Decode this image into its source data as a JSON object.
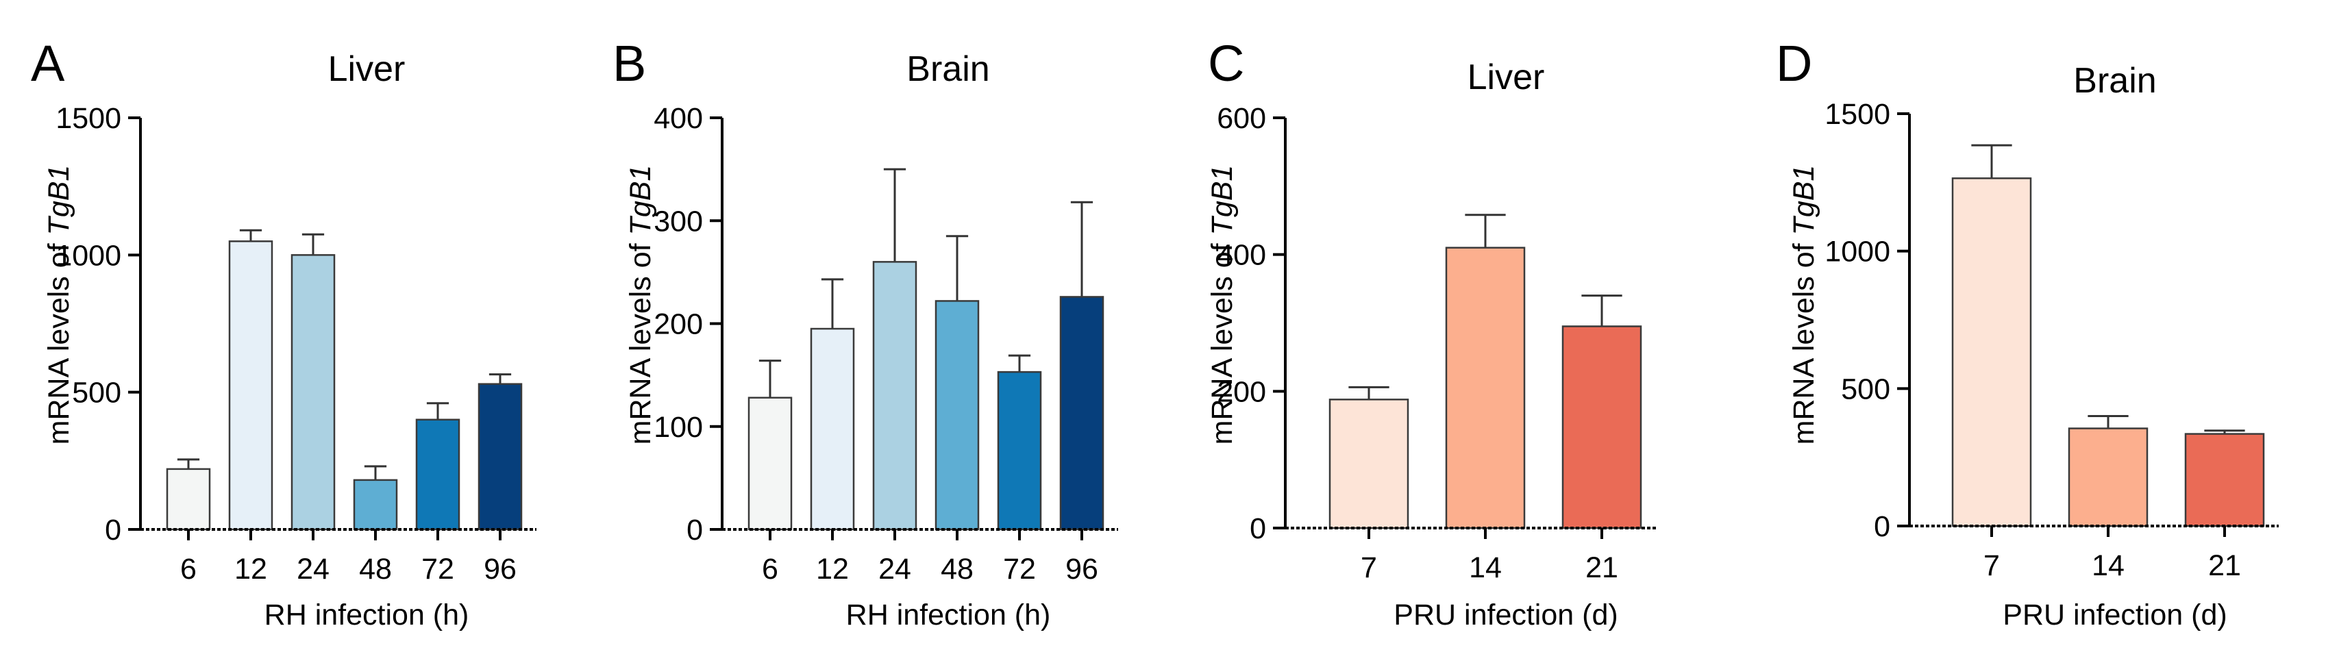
{
  "chart_data": [
    {
      "type": "bar",
      "panel_label": "A",
      "title": "Liver",
      "xlabel": "RH infection (h)",
      "ylabel_prefix": "mRNA levels of ",
      "ylabel_gene": "TgB1",
      "categories": [
        "6",
        "12",
        "24",
        "48",
        "72",
        "96"
      ],
      "values": [
        220,
        1050,
        1000,
        180,
        400,
        530
      ],
      "errors": [
        35,
        40,
        75,
        50,
        60,
        35
      ],
      "colors": [
        "#f4f6f5",
        "#e6f0f8",
        "#abd1e2",
        "#5eaed3",
        "#0f78b6",
        "#063f7c"
      ],
      "ylim": [
        0,
        1500
      ],
      "yticks": [
        "0",
        "500",
        "1000",
        "1500"
      ],
      "ytick_values": [
        0,
        500,
        1000,
        1500
      ]
    },
    {
      "type": "bar",
      "panel_label": "B",
      "title": "Brain",
      "xlabel": "RH infection (h)",
      "ylabel_prefix": "mRNA levels of ",
      "ylabel_gene": "TgB1",
      "categories": [
        "6",
        "12",
        "24",
        "48",
        "72",
        "96"
      ],
      "values": [
        128,
        195,
        260,
        222,
        153,
        226
      ],
      "errors": [
        36,
        48,
        90,
        63,
        16,
        92
      ],
      "colors": [
        "#f4f6f5",
        "#e6f0f8",
        "#abd1e2",
        "#5eaed3",
        "#0f78b6",
        "#063f7c"
      ],
      "ylim": [
        0,
        400
      ],
      "yticks": [
        "0",
        "100",
        "200",
        "300",
        "400"
      ],
      "ytick_values": [
        0,
        100,
        200,
        300,
        400
      ]
    },
    {
      "type": "bar",
      "panel_label": "C",
      "title": "Liver",
      "xlabel": "PRU infection (d)",
      "ylabel_prefix": "mRNA levels of ",
      "ylabel_gene": "TgB1",
      "categories": [
        "7",
        "14",
        "21"
      ],
      "values": [
        188,
        410,
        295
      ],
      "errors": [
        18,
        48,
        45
      ],
      "colors": [
        "#fde4d7",
        "#fcaf8e",
        "#ea6b56"
      ],
      "ylim": [
        0,
        600
      ],
      "yticks": [
        "0",
        "200",
        "400",
        "600"
      ],
      "ytick_values": [
        0,
        200,
        400,
        600
      ]
    },
    {
      "type": "bar",
      "panel_label": "D",
      "title": "Brain",
      "xlabel": "PRU infection (d)",
      "ylabel_prefix": "mRNA levels of ",
      "ylabel_gene": "TgB1",
      "categories": [
        "7",
        "14",
        "21"
      ],
      "values": [
        1265,
        355,
        335
      ],
      "errors": [
        120,
        45,
        12
      ],
      "colors": [
        "#fde4d7",
        "#fcaf8e",
        "#ea6b56"
      ],
      "ylim": [
        0,
        1500
      ],
      "yticks": [
        "0",
        "500",
        "1000",
        "1500"
      ],
      "ytick_values": [
        0,
        500,
        1000,
        1500
      ]
    }
  ]
}
